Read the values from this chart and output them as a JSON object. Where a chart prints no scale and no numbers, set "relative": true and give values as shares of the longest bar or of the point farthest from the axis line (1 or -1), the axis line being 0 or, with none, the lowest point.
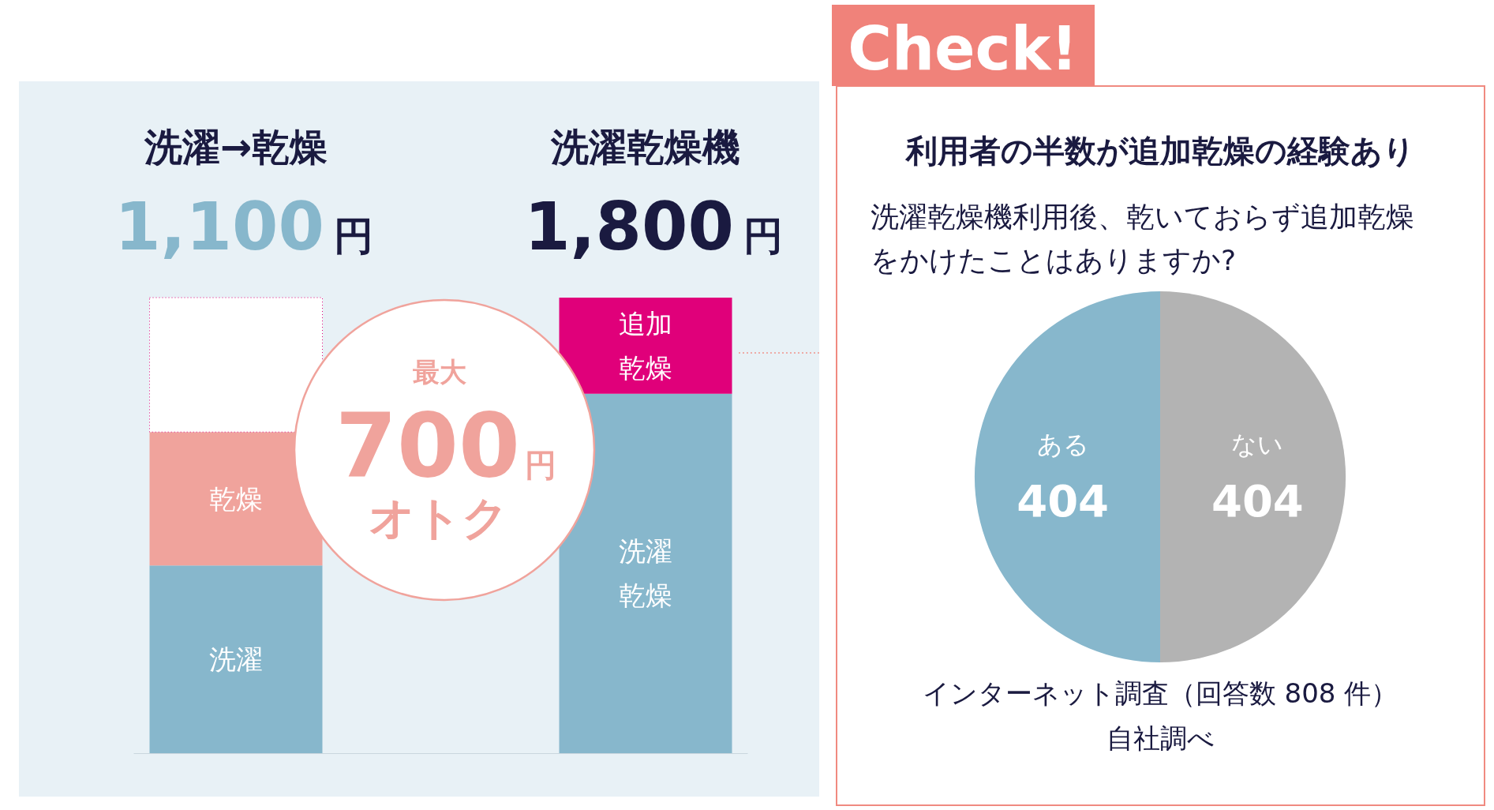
{
  "chart_data": [
    {
      "type": "bar",
      "stacked": true,
      "relative": true,
      "categories": [
        "洗濯→乾燥",
        "洗濯乾燥機"
      ],
      "series": [
        {
          "name": "洗濯",
          "color": "#87b7cc",
          "values": [
            0.412,
            null
          ]
        },
        {
          "name": "乾燥",
          "color": "#f0a39c",
          "values": [
            0.293,
            null
          ]
        },
        {
          "color": "#ffffff",
          "values": [
            0.295,
            null
          ]
        },
        {
          "name": "洗濯乾燥",
          "color": "#87b7cc",
          "values": [
            null,
            0.789
          ]
        },
        {
          "name": "追加乾燥",
          "color": "#e0007a",
          "values": [
            null,
            0.211
          ]
        }
      ],
      "annotations": [
        "1,100円",
        "1,800円",
        "最大",
        "700円",
        "オトク"
      ]
    },
    {
      "type": "pie",
      "title": "利用者の半数が追加乾燥の経験あり",
      "subtitle": "洗濯乾燥機利用後、乾いておらず追加乾燥をかけたことはありますか?",
      "categories": [
        "ある",
        "ない"
      ],
      "values": [
        404,
        404
      ],
      "colors": [
        "#87b7cc",
        "#b3b3b3"
      ],
      "data_labels": true,
      "annotations": [
        "Check!",
        "インターネット調査（回答数 808 件）",
        "自社調べ"
      ]
    }
  ]
}
